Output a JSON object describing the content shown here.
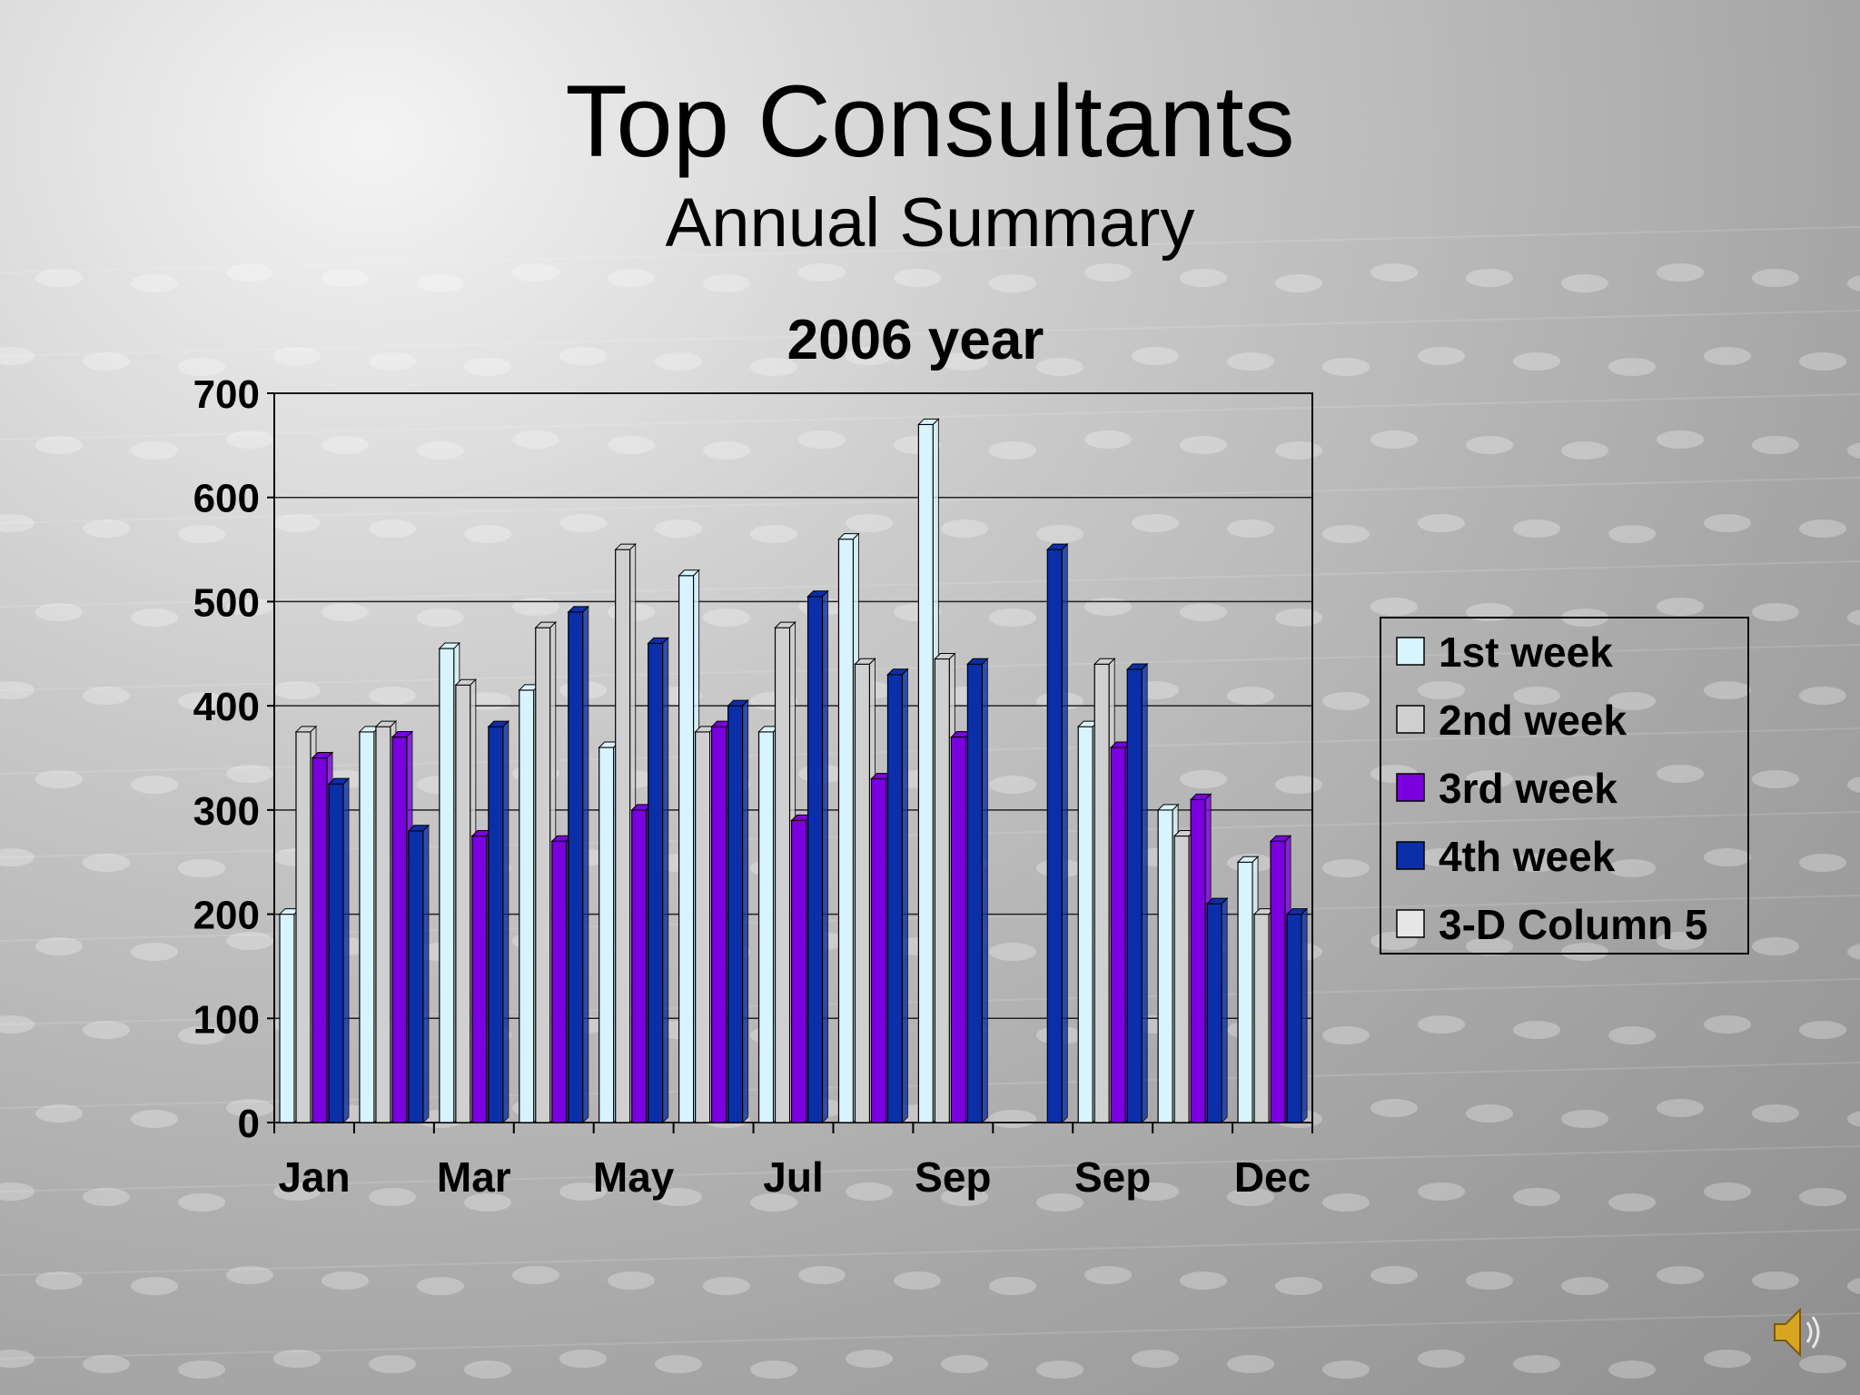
{
  "slide": {
    "title": "Top Consultants",
    "subtitle": "Annual Summary"
  },
  "icons": {
    "audio": "speaker-icon"
  },
  "colors": {
    "series": [
      "#d8f4ff",
      "#d0d0d0",
      "#7a00e0",
      "#0b2fa8",
      "#e6e6e6"
    ],
    "plot_border": "#000000",
    "grid": "#222222"
  },
  "chart_data": {
    "type": "bar",
    "title": "2006 year",
    "xlabel": "",
    "ylabel": "",
    "ylim": [
      0,
      700
    ],
    "yticks": [
      0,
      100,
      200,
      300,
      400,
      500,
      600,
      700
    ],
    "grid": true,
    "legend_position": "right",
    "categories": [
      "Jan",
      "",
      "Mar",
      "",
      "May",
      "",
      "Jul",
      "",
      "Sep",
      "",
      "Sep",
      "",
      "Dec"
    ],
    "series": [
      {
        "name": "1st week",
        "values": [
          200,
          375,
          455,
          415,
          360,
          525,
          375,
          560,
          670,
          0,
          380,
          300,
          250
        ]
      },
      {
        "name": "2nd week",
        "values": [
          375,
          380,
          420,
          475,
          550,
          375,
          475,
          440,
          445,
          0,
          440,
          275,
          200
        ]
      },
      {
        "name": "3rd week",
        "values": [
          350,
          370,
          275,
          270,
          300,
          380,
          290,
          330,
          370,
          0,
          360,
          310,
          270
        ]
      },
      {
        "name": "4th week",
        "values": [
          325,
          280,
          380,
          490,
          460,
          400,
          505,
          430,
          440,
          550,
          435,
          210,
          200
        ]
      },
      {
        "name": "3-D Column 5",
        "values": [
          0,
          0,
          0,
          0,
          0,
          0,
          0,
          0,
          0,
          0,
          0,
          0,
          0
        ]
      }
    ]
  }
}
